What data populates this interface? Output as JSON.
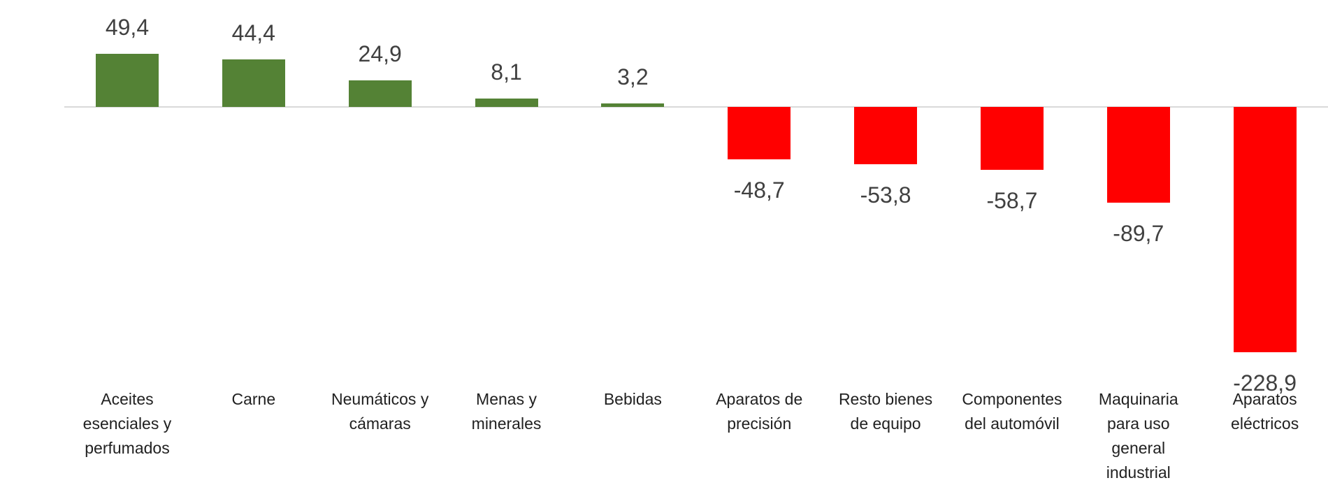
{
  "chart_data": {
    "type": "bar",
    "orientation": "vertical",
    "title": "",
    "xlabel": "",
    "ylabel": "",
    "y_axis_visible": false,
    "grid": false,
    "legend": false,
    "data_labels": "outside-end",
    "decimal_separator": ",",
    "categories": [
      "Aceites esenciales y perfumados",
      "Carne",
      "Neumáticos y cámaras",
      "Menas y minerales",
      "Bebidas",
      "Aparatos de precisión",
      "Resto bienes de equipo",
      "Componentes del automóvil",
      "Maquinaria para uso general industrial",
      "Aparatos eléctricos"
    ],
    "category_label_lines": [
      [
        "Aceites",
        "esenciales y",
        "perfumados"
      ],
      [
        "Carne"
      ],
      [
        "Neumáticos y",
        "cámaras"
      ],
      [
        "Menas y",
        "minerales"
      ],
      [
        "Bebidas"
      ],
      [
        "Aparatos de",
        "precisión"
      ],
      [
        "Resto bienes",
        "de equipo"
      ],
      [
        "Componentes",
        "del automóvil"
      ],
      [
        "Maquinaria",
        "para uso",
        "general",
        "industrial"
      ],
      [
        "Aparatos",
        "eléctricos"
      ]
    ],
    "values": [
      49.4,
      44.4,
      24.9,
      8.1,
      3.2,
      -48.7,
      -53.8,
      -58.7,
      -89.7,
      -228.9
    ],
    "value_labels": [
      "49,4",
      "44,4",
      "24,9",
      "8,1",
      "3,2",
      "-48,7",
      "-53,8",
      "-58,7",
      "-89,7",
      "-228,9"
    ],
    "colors": {
      "positive_bar": "#548235",
      "negative_bar": "#ff0000",
      "axis_line": "#d9d9d9",
      "value_label_text": "#404040",
      "category_label_text": "#212121",
      "background": "#ffffff"
    }
  }
}
